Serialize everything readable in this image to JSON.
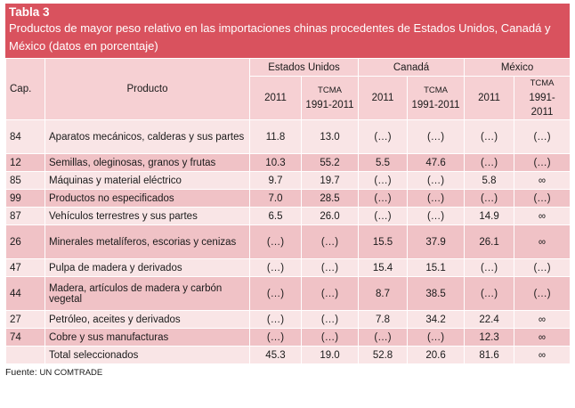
{
  "title": "Tabla 3",
  "subtitle": "Productos de mayor peso relativo en las importaciones chinas procedentes de Estados Unidos, Canadá y México (datos en porcentaje)",
  "headers": {
    "cap": "Cap.",
    "product": "Producto",
    "countries": [
      "Estados Unidos",
      "Canadá",
      "México"
    ],
    "year": "2011",
    "tcma": "TCMA",
    "tcma_period": "1991-2011"
  },
  "rows": [
    {
      "cap": "84",
      "product": "Aparatos mecánicos, calderas y sus partes",
      "us_2011": "11.8",
      "us_tcma": "13.0",
      "ca_2011": "(…)",
      "ca_tcma": "(…)",
      "mx_2011": "(…)",
      "mx_tcma": "(…)"
    },
    {
      "cap": "12",
      "product": "Semillas, oleginosas, granos y frutas",
      "us_2011": "10.3",
      "us_tcma": "55.2",
      "ca_2011": "5.5",
      "ca_tcma": "47.6",
      "mx_2011": "(…)",
      "mx_tcma": "(…)"
    },
    {
      "cap": "85",
      "product": "Máquinas y material eléctrico",
      "us_2011": "9.7",
      "us_tcma": "19.7",
      "ca_2011": "(…)",
      "ca_tcma": "(…)",
      "mx_2011": "5.8",
      "mx_tcma": "∞"
    },
    {
      "cap": "99",
      "product": "Productos no especificados",
      "us_2011": "7.0",
      "us_tcma": "28.5",
      "ca_2011": "(…)",
      "ca_tcma": "(…)",
      "mx_2011": "(…)",
      "mx_tcma": "(…)"
    },
    {
      "cap": "87",
      "product": "Vehículos terrestres y sus partes",
      "us_2011": "6.5",
      "us_tcma": "26.0",
      "ca_2011": "(…)",
      "ca_tcma": "(…)",
      "mx_2011": "14.9",
      "mx_tcma": "∞"
    },
    {
      "cap": "26",
      "product": "Minerales metalíferos, escorias y cenizas",
      "us_2011": "(…)",
      "us_tcma": "(…)",
      "ca_2011": "15.5",
      "ca_tcma": "37.9",
      "mx_2011": "26.1",
      "mx_tcma": "∞"
    },
    {
      "cap": "47",
      "product": "Pulpa de madera y derivados",
      "us_2011": "(…)",
      "us_tcma": "(…)",
      "ca_2011": "15.4",
      "ca_tcma": "15.1",
      "mx_2011": "(…)",
      "mx_tcma": "(…)"
    },
    {
      "cap": "44",
      "product": "Madera, artículos de madera y carbón vegetal",
      "us_2011": "(…)",
      "us_tcma": "(…)",
      "ca_2011": "8.7",
      "ca_tcma": "38.5",
      "mx_2011": "(…)",
      "mx_tcma": "(…)"
    },
    {
      "cap": "27",
      "product": "Petróleo, aceites y derivados",
      "us_2011": "(…)",
      "us_tcma": "(…)",
      "ca_2011": "7.8",
      "ca_tcma": "34.2",
      "mx_2011": "22.4",
      "mx_tcma": "∞"
    },
    {
      "cap": "74",
      "product": "Cobre y sus manufacturas",
      "us_2011": "(…)",
      "us_tcma": "(…)",
      "ca_2011": "(…)",
      "ca_tcma": "(…)",
      "mx_2011": "12.3",
      "mx_tcma": "∞"
    },
    {
      "cap": "",
      "product": "Total seleccionados",
      "us_2011": "45.3",
      "us_tcma": "19.0",
      "ca_2011": "52.8",
      "ca_tcma": "20.6",
      "mx_2011": "81.6",
      "mx_tcma": "∞"
    }
  ],
  "footer": {
    "label": "Fuente:",
    "source": "UN COMTRADE"
  }
}
